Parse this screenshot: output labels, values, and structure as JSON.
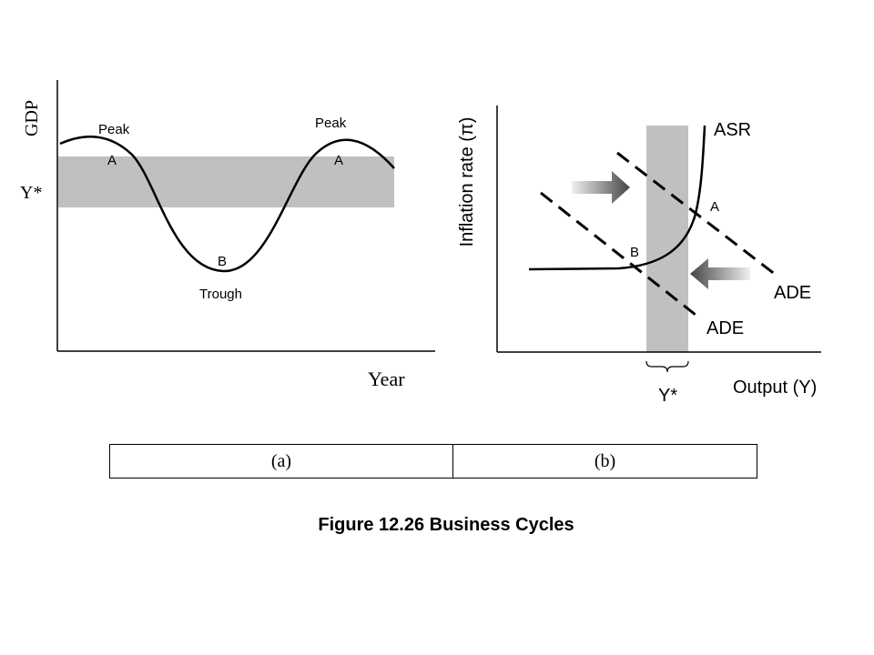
{
  "panel_a": {
    "y_axis_label": "GDP",
    "x_axis_label": "Year",
    "potential_label": "Y*",
    "peak_left_label": "Peak",
    "peak_right_label": "Peak",
    "point_a_left": "A",
    "point_a_right": "A",
    "point_b": "B",
    "trough_label": "Trough"
  },
  "panel_b": {
    "y_axis_label": "Inflation rate (π)",
    "x_axis_label": "Output (Y)",
    "potential_label": "Y*",
    "asr_label": "ASR",
    "ade_upper_label": "ADE",
    "ade_lower_label": "ADE",
    "point_a": "A",
    "point_b": "B"
  },
  "table": {
    "left_cell": "(a)",
    "right_cell": "(b)"
  },
  "caption": "Figure 12.26 Business Cycles",
  "colors": {
    "band": "#c0c0c0",
    "line": "#000000",
    "arrow_dark": "#555555",
    "arrow_light": "#dddddd"
  }
}
